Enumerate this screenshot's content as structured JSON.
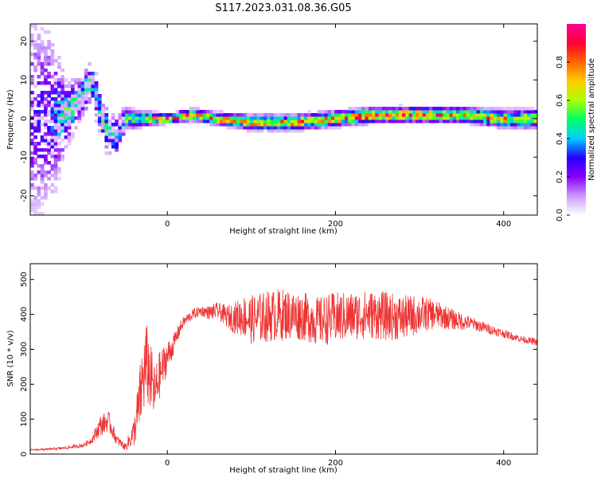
{
  "title": "S117.2023.031.08.36.G05",
  "chart_data": [
    {
      "type": "heatmap",
      "xlabel": "Height of straight line (km)",
      "ylabel": "Frequency (Hz)",
      "xlim": [
        -163,
        440
      ],
      "ylim": [
        -25,
        24.5
      ],
      "x_ticks": [
        0,
        200,
        400
      ],
      "y_ticks": [
        -20,
        -10,
        0,
        10,
        20
      ],
      "colorbar": {
        "label": "Normalized spectral amplitude",
        "range": [
          0,
          1
        ],
        "ticks": [
          "0.0",
          "0.2",
          "0.4",
          "0.6",
          "0.8"
        ],
        "tick_values": [
          0,
          0.2,
          0.4,
          0.6,
          0.8
        ],
        "colors": [
          "#ffffff",
          "#cc99ff",
          "#8800ff",
          "#2200ff",
          "#00ccff",
          "#00ff66",
          "#aaff00",
          "#ffcc00",
          "#ff6600",
          "#ff0033",
          "#ff0099"
        ]
      },
      "ridge": [
        {
          "x": -163,
          "center": 0,
          "spread": 14,
          "amp": 0.25
        },
        {
          "x": -140,
          "center": 0,
          "spread": 12,
          "amp": 0.3
        },
        {
          "x": -120,
          "center": 1,
          "spread": 4,
          "amp": 0.55
        },
        {
          "x": -105,
          "center": 5,
          "spread": 3,
          "amp": 0.5
        },
        {
          "x": -90,
          "center": 10,
          "spread": 3,
          "amp": 0.45
        },
        {
          "x": -75,
          "center": -2,
          "spread": 3,
          "amp": 0.5
        },
        {
          "x": -60,
          "center": -5,
          "spread": 3,
          "amp": 0.45
        },
        {
          "x": -50,
          "center": 0,
          "spread": 1.5,
          "amp": 0.55
        },
        {
          "x": -30,
          "center": 0,
          "spread": 1,
          "amp": 0.7
        },
        {
          "x": 0,
          "center": 0,
          "spread": 0.6,
          "amp": 0.95
        },
        {
          "x": 30,
          "center": 1,
          "spread": 0.8,
          "amp": 0.85
        },
        {
          "x": 60,
          "center": 0,
          "spread": 0.8,
          "amp": 0.85
        },
        {
          "x": 100,
          "center": -1,
          "spread": 1,
          "amp": 0.8
        },
        {
          "x": 150,
          "center": -1,
          "spread": 1,
          "amp": 0.8
        },
        {
          "x": 200,
          "center": 0,
          "spread": 1,
          "amp": 0.85
        },
        {
          "x": 250,
          "center": 1,
          "spread": 1,
          "amp": 0.9
        },
        {
          "x": 300,
          "center": 1,
          "spread": 1,
          "amp": 0.85
        },
        {
          "x": 350,
          "center": 1,
          "spread": 1,
          "amp": 0.8
        },
        {
          "x": 400,
          "center": 0,
          "spread": 1.2,
          "amp": 0.75
        },
        {
          "x": 440,
          "center": 0,
          "spread": 1.2,
          "amp": 0.7
        }
      ]
    },
    {
      "type": "line",
      "xlabel": "Height of straight line (km)",
      "ylabel": "SNR (10 * v/v)",
      "xlim": [
        -163,
        440
      ],
      "ylim": [
        0,
        545
      ],
      "x_ticks": [
        0,
        200,
        400
      ],
      "y_ticks": [
        0,
        100,
        200,
        300,
        400,
        500
      ],
      "series": [
        {
          "color": "#ee3333",
          "x": [
            -163,
            -140,
            -120,
            -100,
            -90,
            -80,
            -70,
            -60,
            -50,
            -40,
            -35,
            -30,
            -25,
            -20,
            -15,
            -10,
            -5,
            0,
            5,
            10,
            15,
            20,
            30,
            40,
            50,
            60,
            70,
            80,
            90,
            100,
            120,
            140,
            160,
            180,
            200,
            220,
            240,
            260,
            280,
            300,
            320,
            340,
            360,
            380,
            400,
            420,
            440
          ],
          "values": [
            12,
            14,
            18,
            25,
            40,
            80,
            95,
            40,
            20,
            60,
            120,
            200,
            260,
            220,
            170,
            220,
            250,
            280,
            300,
            330,
            360,
            380,
            400,
            410,
            405,
            410,
            395,
            390,
            395,
            385,
            395,
            400,
            395,
            380,
            390,
            395,
            400,
            395,
            390,
            400,
            400,
            385,
            375,
            360,
            345,
            330,
            320
          ],
          "noise": [
            2,
            3,
            4,
            6,
            10,
            30,
            30,
            15,
            10,
            40,
            80,
            110,
            120,
            100,
            80,
            70,
            60,
            45,
            35,
            25,
            20,
            15,
            15,
            15,
            20,
            25,
            30,
            45,
            60,
            70,
            75,
            75,
            70,
            70,
            75,
            70,
            70,
            70,
            65,
            55,
            40,
            30,
            20,
            15,
            12,
            10,
            10
          ]
        }
      ]
    }
  ]
}
